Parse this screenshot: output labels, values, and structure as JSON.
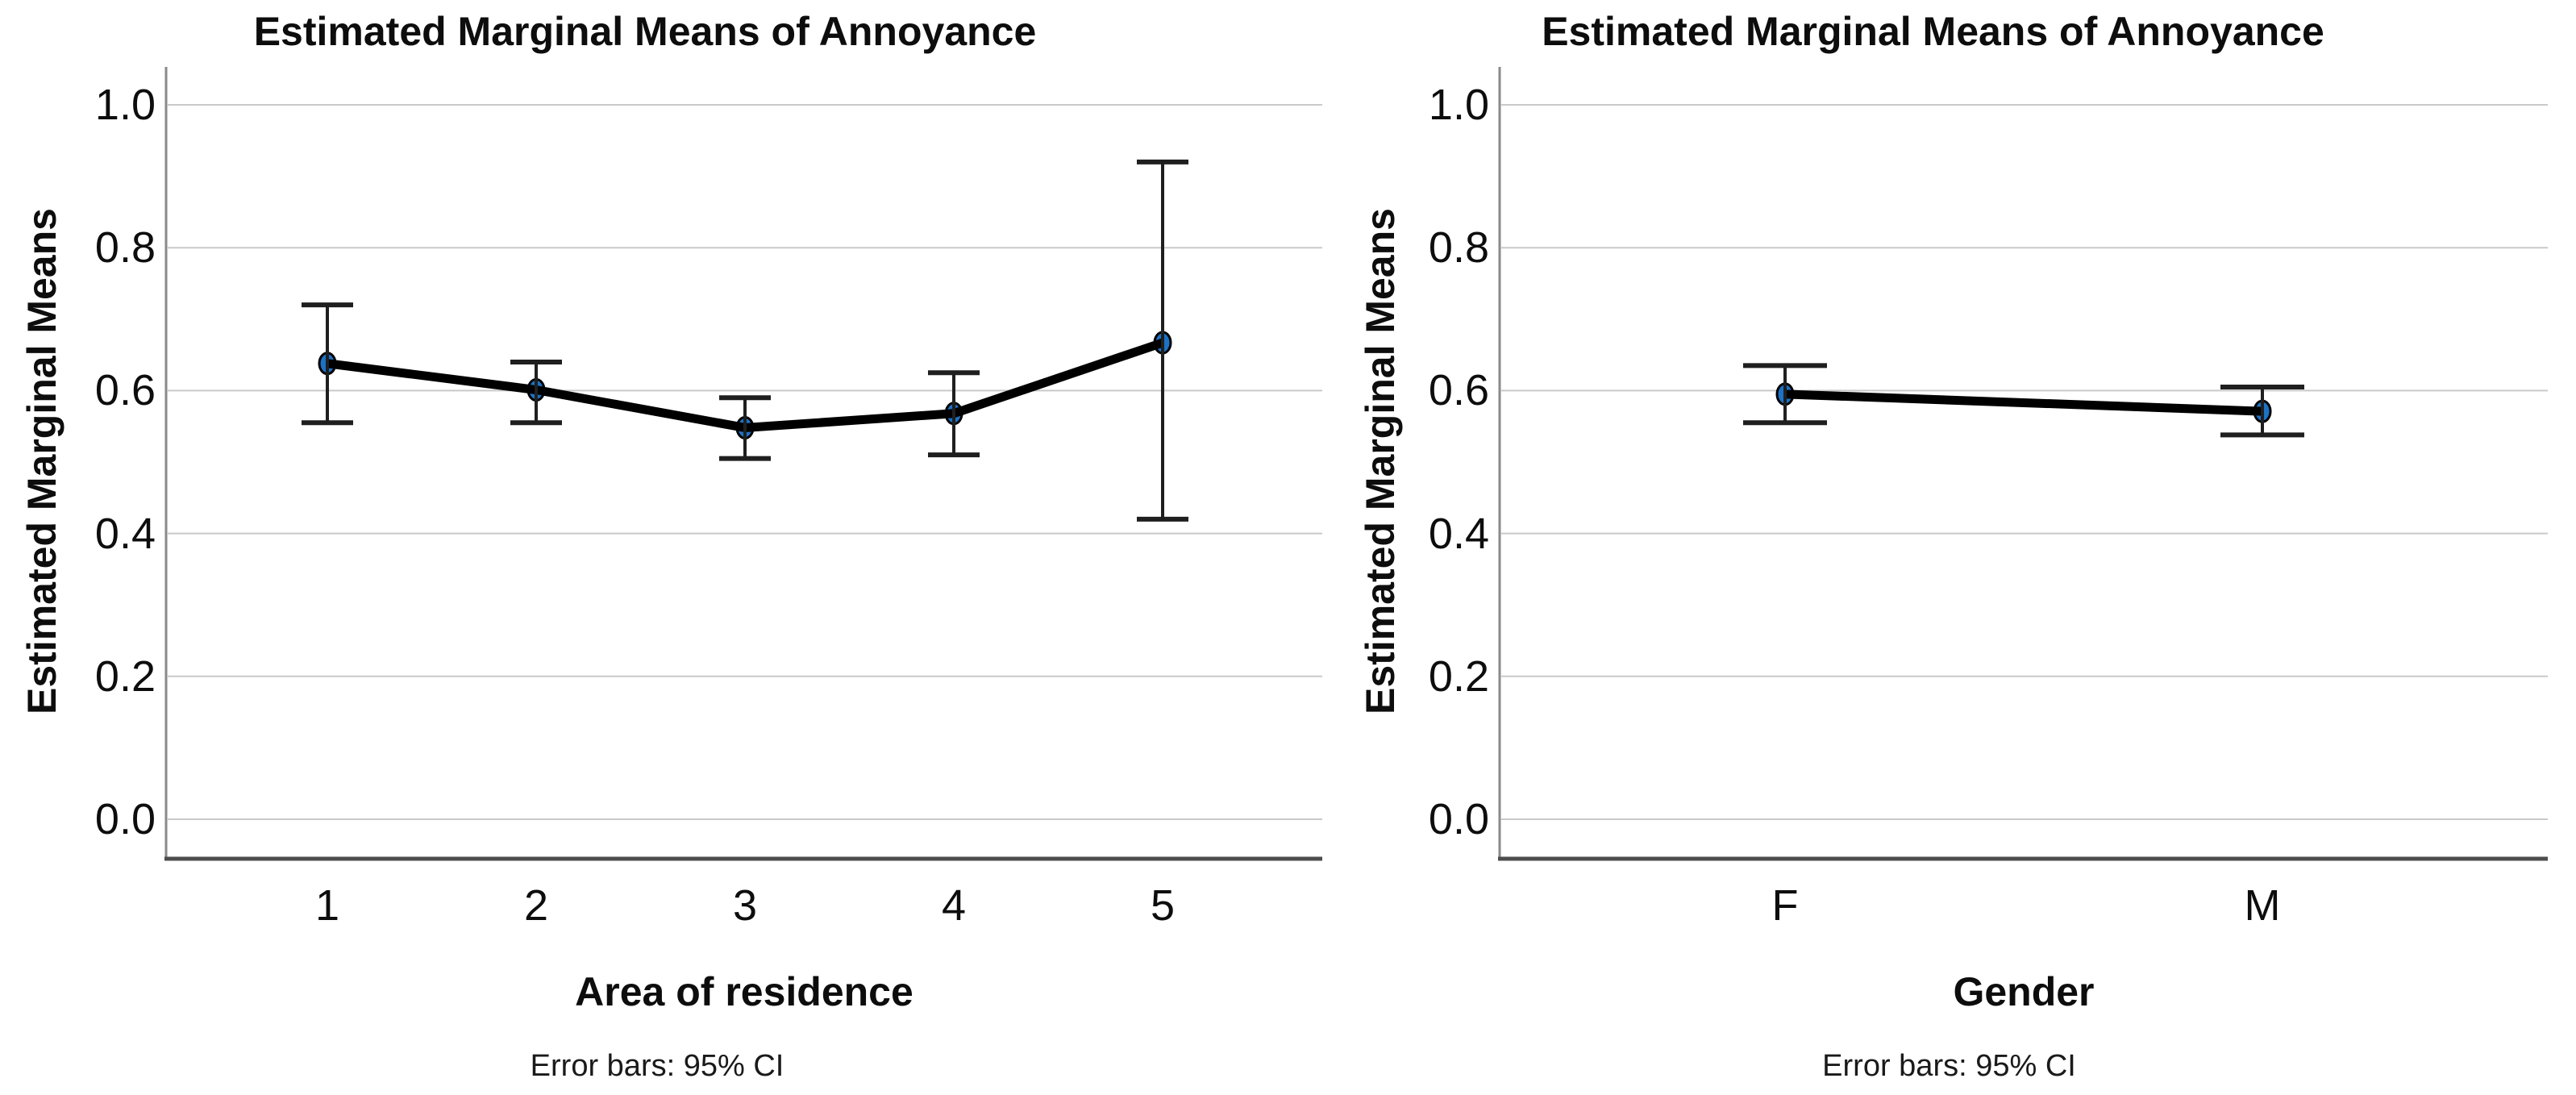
{
  "page": {
    "background": "#ffffff"
  },
  "chart_data": [
    {
      "type": "line",
      "title": "Estimated Marginal Means of Annoyance",
      "xlabel": "Area of residence",
      "ylabel": "Estimated Marginal Means",
      "footnote": "Error bars: 95% CI",
      "categories": [
        "1",
        "2",
        "3",
        "4",
        "5"
      ],
      "series": [
        {
          "name": "Estimated Marginal Means of Annoyance",
          "means": [
            0.638,
            0.601,
            0.548,
            0.568,
            0.667
          ],
          "ci_lower": [
            0.555,
            0.555,
            0.505,
            0.51,
            0.42
          ],
          "ci_upper": [
            0.72,
            0.64,
            0.59,
            0.625,
            0.92
          ]
        }
      ],
      "error_bars": "95% CI",
      "ylim": [
        0.0,
        1.0
      ],
      "y_ticks": [
        "1.0",
        "0.8",
        "0.6",
        "0.4",
        "0.2",
        "0.0"
      ],
      "grid": "horizontal",
      "legend": "none",
      "marker_color": "#1d72c4",
      "line_color": "#000000",
      "gridline_color": "#c9c9c9"
    },
    {
      "type": "line",
      "title": "Estimated Marginal Means of Annoyance",
      "xlabel": "Gender",
      "ylabel": "Estimated Marginal Means",
      "footnote": "Error bars: 95% CI",
      "categories": [
        "F",
        "M"
      ],
      "series": [
        {
          "name": "Estimated Marginal Means of Annoyance",
          "means": [
            0.595,
            0.571
          ],
          "ci_lower": [
            0.555,
            0.538
          ],
          "ci_upper": [
            0.635,
            0.605
          ]
        }
      ],
      "error_bars": "95% CI",
      "ylim": [
        0.0,
        1.0
      ],
      "y_ticks": [
        "1.0",
        "0.8",
        "0.6",
        "0.4",
        "0.2",
        "0.0"
      ],
      "grid": "horizontal",
      "legend": "none",
      "marker_color": "#1d72c4",
      "line_color": "#000000",
      "gridline_color": "#c9c9c9"
    }
  ]
}
